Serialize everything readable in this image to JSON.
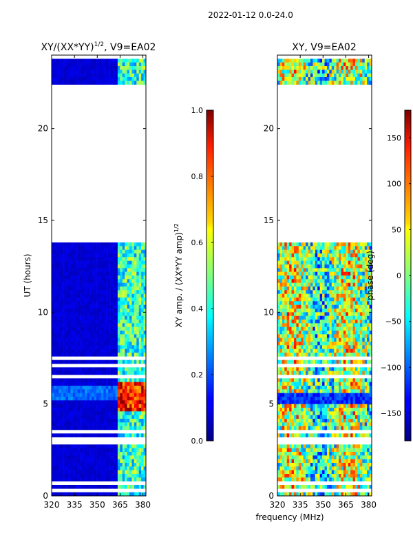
{
  "suptitle": "2022-01-12 0.0-24.0",
  "common_xlabel": "frequency (MHz)",
  "colormap": "jet",
  "chart_data": [
    {
      "type": "heatmap",
      "title": "XY/(XX*YY)^1/2, V9=EA02",
      "title_main": "XY/(XX*YY)",
      "title_sup": "1/2",
      "title_rest": ", V9=EA02",
      "xlabel": "",
      "ylabel": "UT (hours)",
      "xlim": [
        320,
        382
      ],
      "ylim": [
        0,
        24
      ],
      "xticks": [
        320,
        335,
        350,
        365,
        380
      ],
      "yticks": [
        0,
        5,
        10,
        15,
        20
      ],
      "data_gap_hours": [
        13.8,
        22.4
      ],
      "colorbar": {
        "label": "XY amp. / (XX*YY amp)^1/2",
        "label_main": "XY amp. / (XX*YY amp)",
        "label_sup": "1/2",
        "range": [
          0.0,
          1.0
        ],
        "ticks": [
          0.0,
          0.2,
          0.4,
          0.6,
          0.8,
          1.0
        ],
        "tick_labels": [
          "0.0",
          "0.2",
          "0.4",
          "0.6",
          "0.8",
          "1.0"
        ]
      }
    },
    {
      "type": "heatmap",
      "title": "XY, V9=EA02",
      "xlabel": "frequency (MHz)",
      "ylabel": "",
      "xlim": [
        320,
        382
      ],
      "ylim": [
        0,
        24
      ],
      "xticks": [
        320,
        335,
        350,
        365,
        380
      ],
      "yticks": [
        0,
        5,
        10,
        15,
        20
      ],
      "data_gap_hours": [
        13.8,
        22.4
      ],
      "colorbar": {
        "label": "phase (deg)",
        "range": [
          -180,
          180
        ],
        "ticks": [
          -150,
          -100,
          -50,
          0,
          50,
          100,
          150
        ],
        "tick_labels": [
          "−150",
          "−100",
          "−50",
          "0",
          "50",
          "100",
          "150"
        ]
      }
    }
  ]
}
